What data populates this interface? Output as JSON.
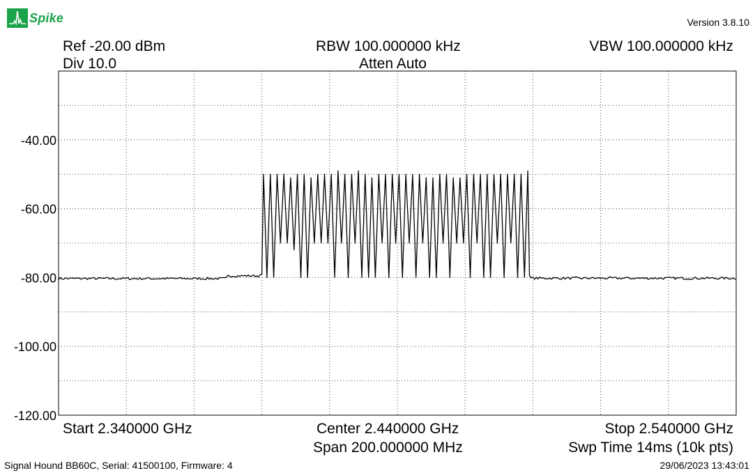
{
  "app": {
    "logo_text": "Spike",
    "version": "Version 3.8.10",
    "brand_color": "#1aa34a"
  },
  "header": {
    "ref": "Ref -20.00 dBm",
    "div": "Div 10.0",
    "rbw": "RBW 100.000000 kHz",
    "atten": "Atten Auto",
    "vbw": "VBW 100.000000 kHz"
  },
  "footer_axis": {
    "start": "Start 2.340000 GHz",
    "center": "Center 2.440000 GHz",
    "span": "Span 200.000000 MHz",
    "stop": "Stop 2.540000 GHz",
    "sweep": "Swp Time 14ms (10k pts)"
  },
  "status": {
    "device": "Signal Hound BB60C, Serial: 41500100, Firmware: 4",
    "timestamp": "29/06/2023 13:43:01"
  },
  "chart_data": {
    "type": "line",
    "xlabel": "",
    "ylabel": "",
    "xlim": [
      2340,
      2540
    ],
    "ylim": [
      -120,
      -20
    ],
    "x_unit": "MHz",
    "y_unit": "dBm",
    "y_ticks": [
      -120,
      -100,
      -80,
      -60,
      -40
    ],
    "y_tick_labels": [
      "-120.00",
      "-100.00",
      "-80.00",
      "-60.00",
      "-40.00"
    ],
    "grid": true,
    "noise_floor_dbm": -80.3,
    "elevated_floor": {
      "x_start": 2390,
      "x_end": 2400,
      "level_dbm": -79.5
    },
    "hopping_band": {
      "x_start": 2400,
      "x_end": 2479
    },
    "series": [
      {
        "peaks_x": [
          2400.5,
          2402.5,
          2404.5,
          2406.5,
          2408.5,
          2410.5,
          2412.5,
          2414.5,
          2416.5,
          2418.5,
          2420.5,
          2422.5,
          2424.5,
          2426.5,
          2428.5,
          2430.5,
          2432.5,
          2434.5,
          2436.5,
          2438.5,
          2440.5,
          2442.5,
          2444.5,
          2446.5,
          2448.5,
          2450.5,
          2452.5,
          2454.5,
          2456.5,
          2458.5,
          2460.5,
          2462.5,
          2464.5,
          2466.5,
          2468.5,
          2470.5,
          2472.5,
          2474.5,
          2476.5,
          2478.5
        ],
        "peaks_y": [
          -50,
          -50,
          -50,
          -50,
          -51,
          -50,
          -50,
          -51,
          -50,
          -50,
          -50,
          -49,
          -50,
          -50,
          -49,
          -50,
          -51,
          -50,
          -50,
          -50,
          -50,
          -50,
          -50,
          -50,
          -51,
          -51,
          -50,
          -50,
          -51,
          -51,
          -50,
          -50,
          -50,
          -50,
          -50,
          -50,
          -50,
          -50,
          -50,
          -49
        ],
        "troughs_y": [
          -80,
          -80,
          -70,
          -70,
          -72,
          -80,
          -80,
          -70,
          -70,
          -70,
          -80,
          -70,
          -80,
          -70,
          -80,
          -80,
          -80,
          -70,
          -80,
          -70,
          -80,
          -70,
          -80,
          -70,
          -80,
          -80,
          -70,
          -80,
          -70,
          -70,
          -80,
          -70,
          -80,
          -80,
          -70,
          -80,
          -70,
          -80,
          -80
        ]
      }
    ]
  }
}
